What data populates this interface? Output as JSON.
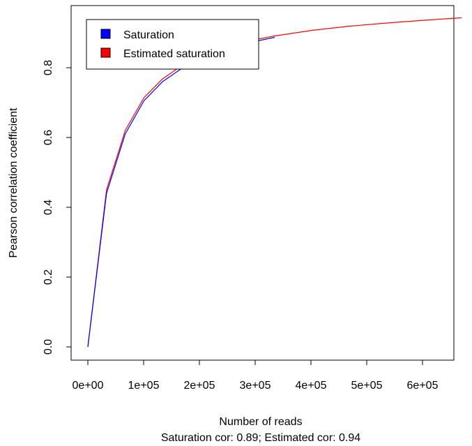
{
  "chart_data": {
    "type": "line",
    "title": "",
    "subtitle": "Saturation cor: 0.89; Estimated cor: 0.94",
    "xlabel": "Number of reads",
    "ylabel": "Pearson correlation coefficient",
    "xlim": [
      0,
      680000
    ],
    "ylim": [
      0,
      0.95
    ],
    "grid": false,
    "legend_position": "top-left",
    "x_ticks": [
      {
        "value": 0,
        "label": "0e+00"
      },
      {
        "value": 100000,
        "label": "1e+05"
      },
      {
        "value": 200000,
        "label": "2e+05"
      },
      {
        "value": 300000,
        "label": "3e+05"
      },
      {
        "value": 400000,
        "label": "4e+05"
      },
      {
        "value": 500000,
        "label": "5e+05"
      },
      {
        "value": 600000,
        "label": "6e+05"
      }
    ],
    "y_ticks": [
      {
        "value": 0.0,
        "label": "0.0"
      },
      {
        "value": 0.2,
        "label": "0.2"
      },
      {
        "value": 0.4,
        "label": "0.4"
      },
      {
        "value": 0.6,
        "label": "0.6"
      },
      {
        "value": 0.8,
        "label": "0.8"
      }
    ],
    "series": [
      {
        "name": "Saturation",
        "color": "#0000ff",
        "x": [
          0,
          33500,
          67000,
          100500,
          134000,
          167500,
          201000,
          234500,
          268000,
          301500,
          335000
        ],
        "y": [
          0.0,
          0.44,
          0.61,
          0.705,
          0.76,
          0.797,
          0.825,
          0.846,
          0.862,
          0.876,
          0.887
        ]
      },
      {
        "name": "Estimated saturation",
        "color": "#ff0000",
        "x": [
          0,
          33500,
          67000,
          100500,
          134000,
          167500,
          201000,
          234500,
          268000,
          301500,
          335000,
          402000,
          469000,
          536000,
          603000,
          670000
        ],
        "y": [
          0.0,
          0.45,
          0.62,
          0.714,
          0.768,
          0.805,
          0.832,
          0.852,
          0.868,
          0.881,
          0.891,
          0.907,
          0.919,
          0.928,
          0.936,
          0.943
        ]
      }
    ]
  }
}
